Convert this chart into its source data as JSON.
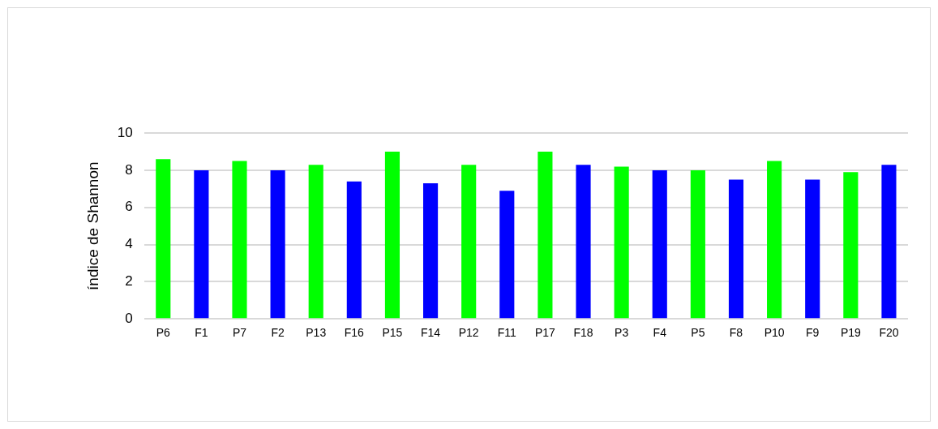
{
  "chart_data": {
    "type": "bar",
    "ylabel": "índice de Shannon",
    "categories": [
      "P6",
      "F1",
      "P7",
      "F2",
      "P13",
      "F16",
      "P15",
      "F14",
      "P12",
      "F11",
      "P17",
      "F18",
      "P3",
      "F4",
      "P5",
      "F8",
      "P10",
      "F9",
      "P19",
      "F20"
    ],
    "values": [
      8.6,
      8.0,
      8.5,
      8.0,
      8.3,
      7.4,
      9.0,
      7.3,
      8.3,
      6.9,
      9.0,
      8.3,
      8.2,
      8.0,
      8.0,
      7.5,
      8.5,
      7.5,
      7.9,
      8.3
    ],
    "colors": [
      "#00ff00",
      "#0000ff",
      "#00ff00",
      "#0000ff",
      "#00ff00",
      "#0000ff",
      "#00ff00",
      "#0000ff",
      "#00ff00",
      "#0000ff",
      "#00ff00",
      "#0000ff",
      "#00ff00",
      "#0000ff",
      "#00ff00",
      "#0000ff",
      "#00ff00",
      "#0000ff",
      "#00ff00",
      "#0000ff"
    ],
    "ylim": [
      0,
      10
    ],
    "yticks": [
      0,
      2,
      4,
      6,
      8,
      10
    ],
    "grid": "y",
    "legend": false
  }
}
